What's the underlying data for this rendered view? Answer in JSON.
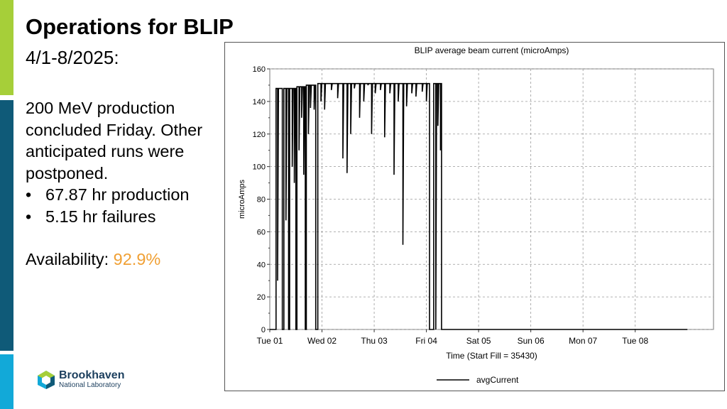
{
  "colors": {
    "green_bar": "#a6cf39",
    "teal_bar": "#0f5a78",
    "blue_bar": "#12a9d8",
    "highlight": "#f0a034",
    "chart_line": "#000000",
    "grid": "#999999"
  },
  "slide": {
    "title": "Operations for BLIP",
    "subtitle": "4/1-8/2025:",
    "intro": [
      "200 MeV production",
      "concluded Friday. Other",
      "anticipated runs were",
      "postponed."
    ],
    "bullets": [
      "67.87 hr production",
      "5.15 hr failures"
    ],
    "bullet_symbol": "•",
    "availability_label": "Availability:",
    "availability_value": "92.9%"
  },
  "logo": {
    "name": "Brookhaven",
    "subname": "National Laboratory",
    "icon": "hexagon-logo-icon"
  },
  "chart_data": {
    "type": "line",
    "title": "BLIP average beam current (microAmps)",
    "xlabel": "Time (Start Fill = 35430)",
    "ylabel": "microAmps",
    "ylim": [
      0,
      160
    ],
    "yticks": [
      0,
      20,
      40,
      60,
      80,
      100,
      120,
      140,
      160
    ],
    "xlim_days": [
      0,
      8.5
    ],
    "xticks": [
      "Tue 01",
      "Wed 02",
      "Thu 03",
      "Fri 04",
      "Sat 05",
      "Sun 06",
      "Mon 07",
      "Tue 08"
    ],
    "grid": true,
    "legend_position": "bottom",
    "series": [
      {
        "name": "avgCurrent",
        "plateaus": [
          {
            "from": 0.12,
            "to": 0.24,
            "value": 148,
            "drops": [
              {
                "at": 0.15,
                "value": 30
              }
            ]
          },
          {
            "from": 0.27,
            "to": 0.36,
            "value": 148,
            "drops": [
              {
                "at": 0.31,
                "value": 67
              }
            ]
          },
          {
            "from": 0.38,
            "to": 0.5,
            "value": 148,
            "drops": [
              {
                "at": 0.43,
                "value": 100
              },
              {
                "at": 0.47,
                "value": 90
              }
            ]
          },
          {
            "from": 0.52,
            "to": 0.68,
            "value": 149,
            "drops": [
              {
                "at": 0.56,
                "value": 110
              },
              {
                "at": 0.61,
                "value": 130
              },
              {
                "at": 0.65,
                "value": 95
              }
            ]
          },
          {
            "from": 0.7,
            "to": 0.88,
            "value": 150,
            "drops": [
              {
                "at": 0.74,
                "value": 120
              },
              {
                "at": 0.78,
                "value": 136
              },
              {
                "at": 0.85,
                "value": 135
              }
            ]
          },
          {
            "from": 0.92,
            "to": 3.06,
            "value": 151,
            "drops": [
              {
                "at": 0.98,
                "value": 140
              },
              {
                "at": 1.05,
                "value": 135
              },
              {
                "at": 1.18,
                "value": 147
              },
              {
                "at": 1.3,
                "value": 142
              },
              {
                "at": 1.4,
                "value": 105
              },
              {
                "at": 1.48,
                "value": 96
              },
              {
                "at": 1.55,
                "value": 120
              },
              {
                "at": 1.62,
                "value": 148
              },
              {
                "at": 1.72,
                "value": 130
              },
              {
                "at": 1.8,
                "value": 140
              },
              {
                "at": 1.88,
                "value": 150
              },
              {
                "at": 1.95,
                "value": 120
              },
              {
                "at": 2.02,
                "value": 145
              },
              {
                "at": 2.12,
                "value": 147
              },
              {
                "at": 2.2,
                "value": 118
              },
              {
                "at": 2.3,
                "value": 145
              },
              {
                "at": 2.38,
                "value": 95
              },
              {
                "at": 2.46,
                "value": 140
              },
              {
                "at": 2.55,
                "value": 52
              },
              {
                "at": 2.62,
                "value": 137
              },
              {
                "at": 2.72,
                "value": 145
              },
              {
                "at": 2.8,
                "value": 143
              },
              {
                "at": 2.92,
                "value": 146
              },
              {
                "at": 3.0,
                "value": 140
              }
            ]
          },
          {
            "from": 3.14,
            "to": 3.29,
            "value": 151,
            "drops": [
              {
                "at": 3.18,
                "value": 0
              },
              {
                "at": 3.22,
                "value": 125
              },
              {
                "at": 3.27,
                "value": 110
              }
            ]
          }
        ],
        "zero_until": 8.0
      }
    ]
  }
}
